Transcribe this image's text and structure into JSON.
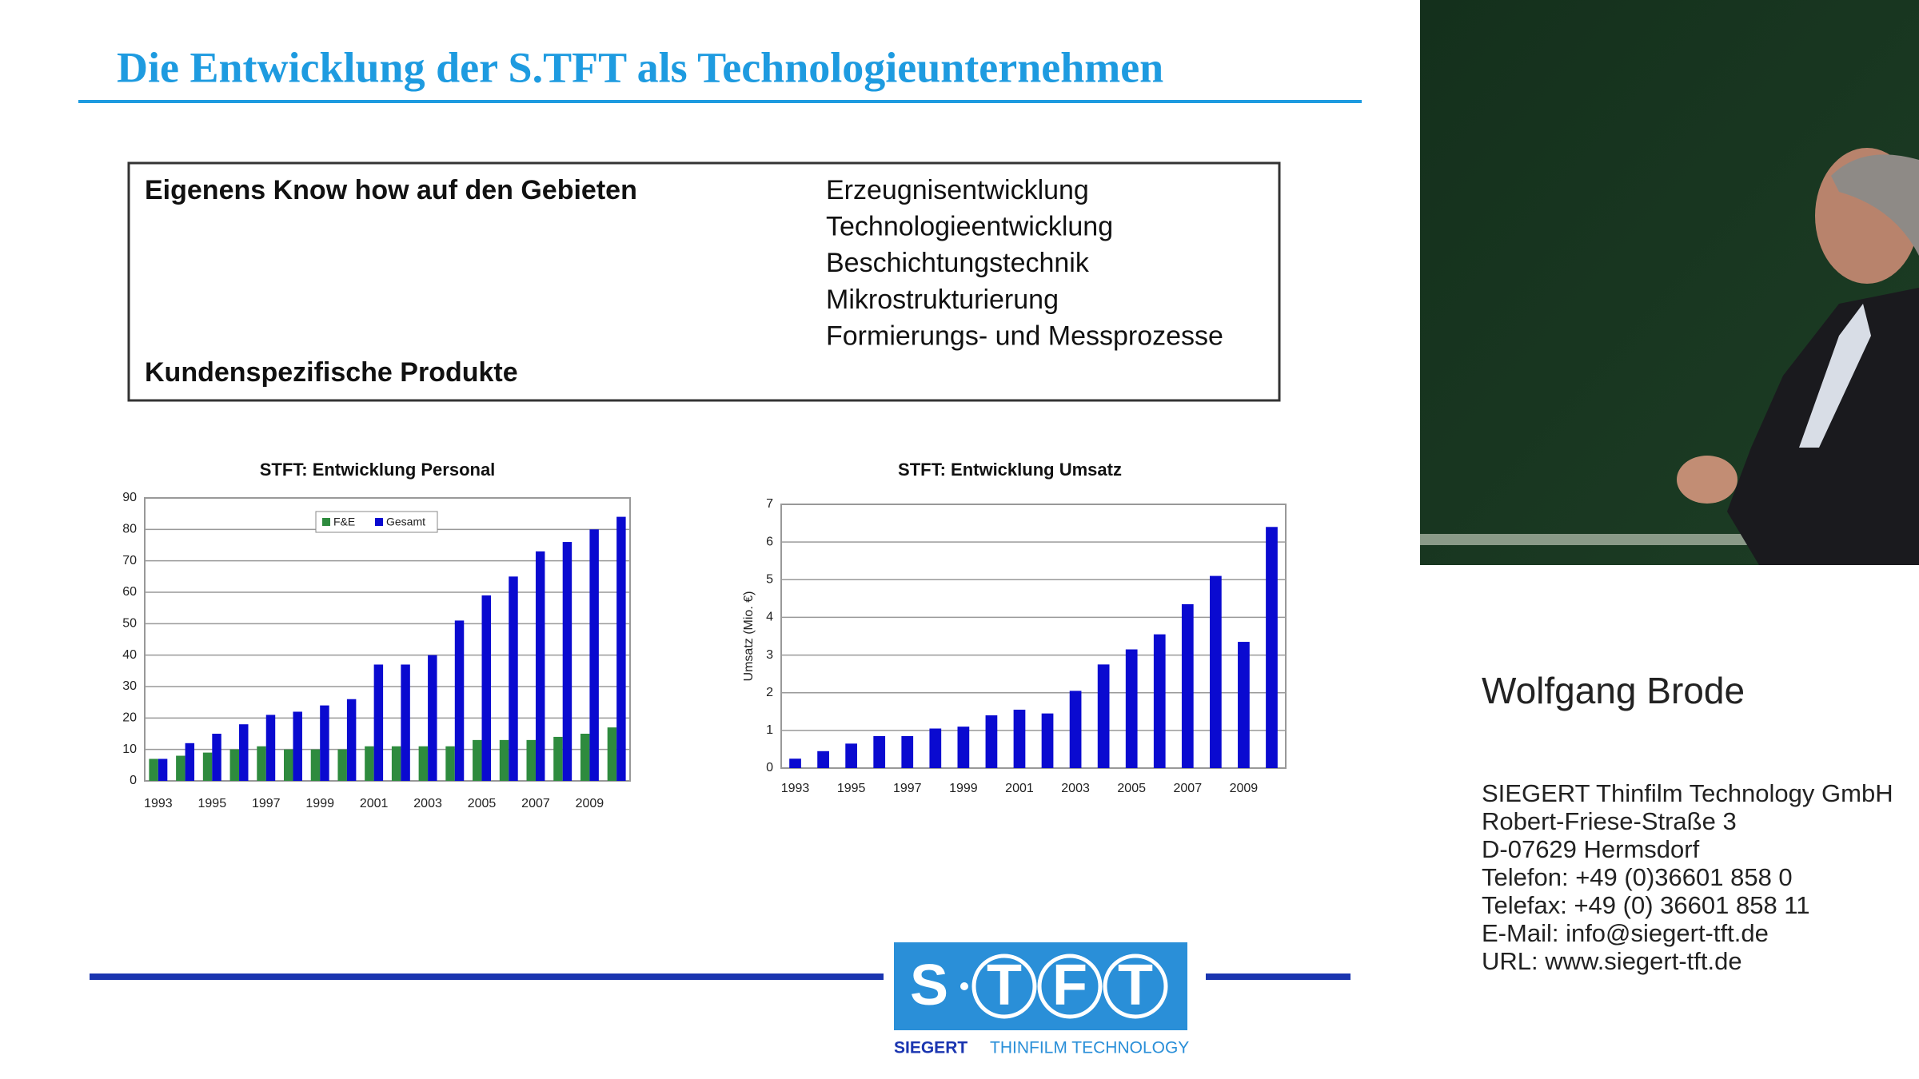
{
  "slide": {
    "title": "Die Entwicklung der S.TFT als Technologieunternehmen",
    "box": {
      "left": [
        "Eigenens Know how auf den Gebieten",
        "Kundenspezifische Produkte"
      ],
      "right": [
        "Erzeugnisentwicklung",
        "Technologieentwicklung",
        "Beschichtungstechnik",
        "Mikrostrukturierung",
        "Formierungs- und Messprozesse"
      ]
    }
  },
  "chart_data": [
    {
      "type": "bar",
      "title": "STFT: Entwicklung Personal",
      "categories": [
        "1993",
        null,
        "1995",
        null,
        "1997",
        null,
        "1999",
        null,
        "2001",
        null,
        "2003",
        null,
        "2005",
        null,
        "2007",
        null,
        "2009",
        null
      ],
      "series": [
        {
          "name": "F&E",
          "color": "#2e8b3e",
          "values": [
            7,
            8,
            9,
            10,
            11,
            10,
            10,
            10,
            11,
            11,
            11,
            11,
            13,
            13,
            13,
            14,
            15,
            17
          ]
        },
        {
          "name": "Gesamt",
          "color": "#0a0ad0",
          "values": [
            7,
            12,
            15,
            18,
            21,
            22,
            24,
            26,
            37,
            37,
            40,
            51,
            59,
            65,
            73,
            76,
            80,
            84
          ]
        }
      ],
      "ylim": [
        0,
        90
      ],
      "yticks": [
        0,
        10,
        20,
        30,
        40,
        50,
        60,
        70,
        80,
        90
      ],
      "grid": true,
      "legend": "top"
    },
    {
      "type": "bar",
      "title": "STFT: Entwicklung Umsatz",
      "y_label": "Umsatz (Mio. €)",
      "categories": [
        "1993",
        null,
        "1995",
        null,
        "1997",
        null,
        "1999",
        null,
        "2001",
        null,
        "2003",
        null,
        "2005",
        null,
        "2007",
        null,
        "2009",
        null
      ],
      "series": [
        {
          "name": "Umsatz",
          "color": "#0a0ad0",
          "values": [
            0.25,
            0.45,
            0.65,
            0.85,
            0.85,
            1.05,
            1.1,
            1.4,
            1.55,
            1.45,
            2.05,
            2.75,
            3.15,
            3.55,
            4.35,
            5.1,
            3.35,
            6.4
          ]
        }
      ],
      "ylim": [
        0,
        7
      ],
      "yticks": [
        0,
        1,
        2,
        3,
        4,
        5,
        6,
        7
      ],
      "grid": true
    }
  ],
  "speaker": {
    "name": "Wolfgang Brode",
    "address": [
      "SIEGERT Thinfilm Technology GmbH",
      "Robert-Friese-Straße 3",
      "D-07629 Hermsdorf",
      "Telefon: +49 (0)36601 858 0",
      "Telefax: +49 (0) 36601 858 11",
      "E-Mail: info@siegert-tft.de",
      "URL: www.siegert-tft.de"
    ]
  },
  "logo": {
    "letters": [
      "S",
      "T",
      "F",
      "T"
    ],
    "company": "SIEGERT",
    "tagline": "THINFILM TECHNOLOGY"
  }
}
